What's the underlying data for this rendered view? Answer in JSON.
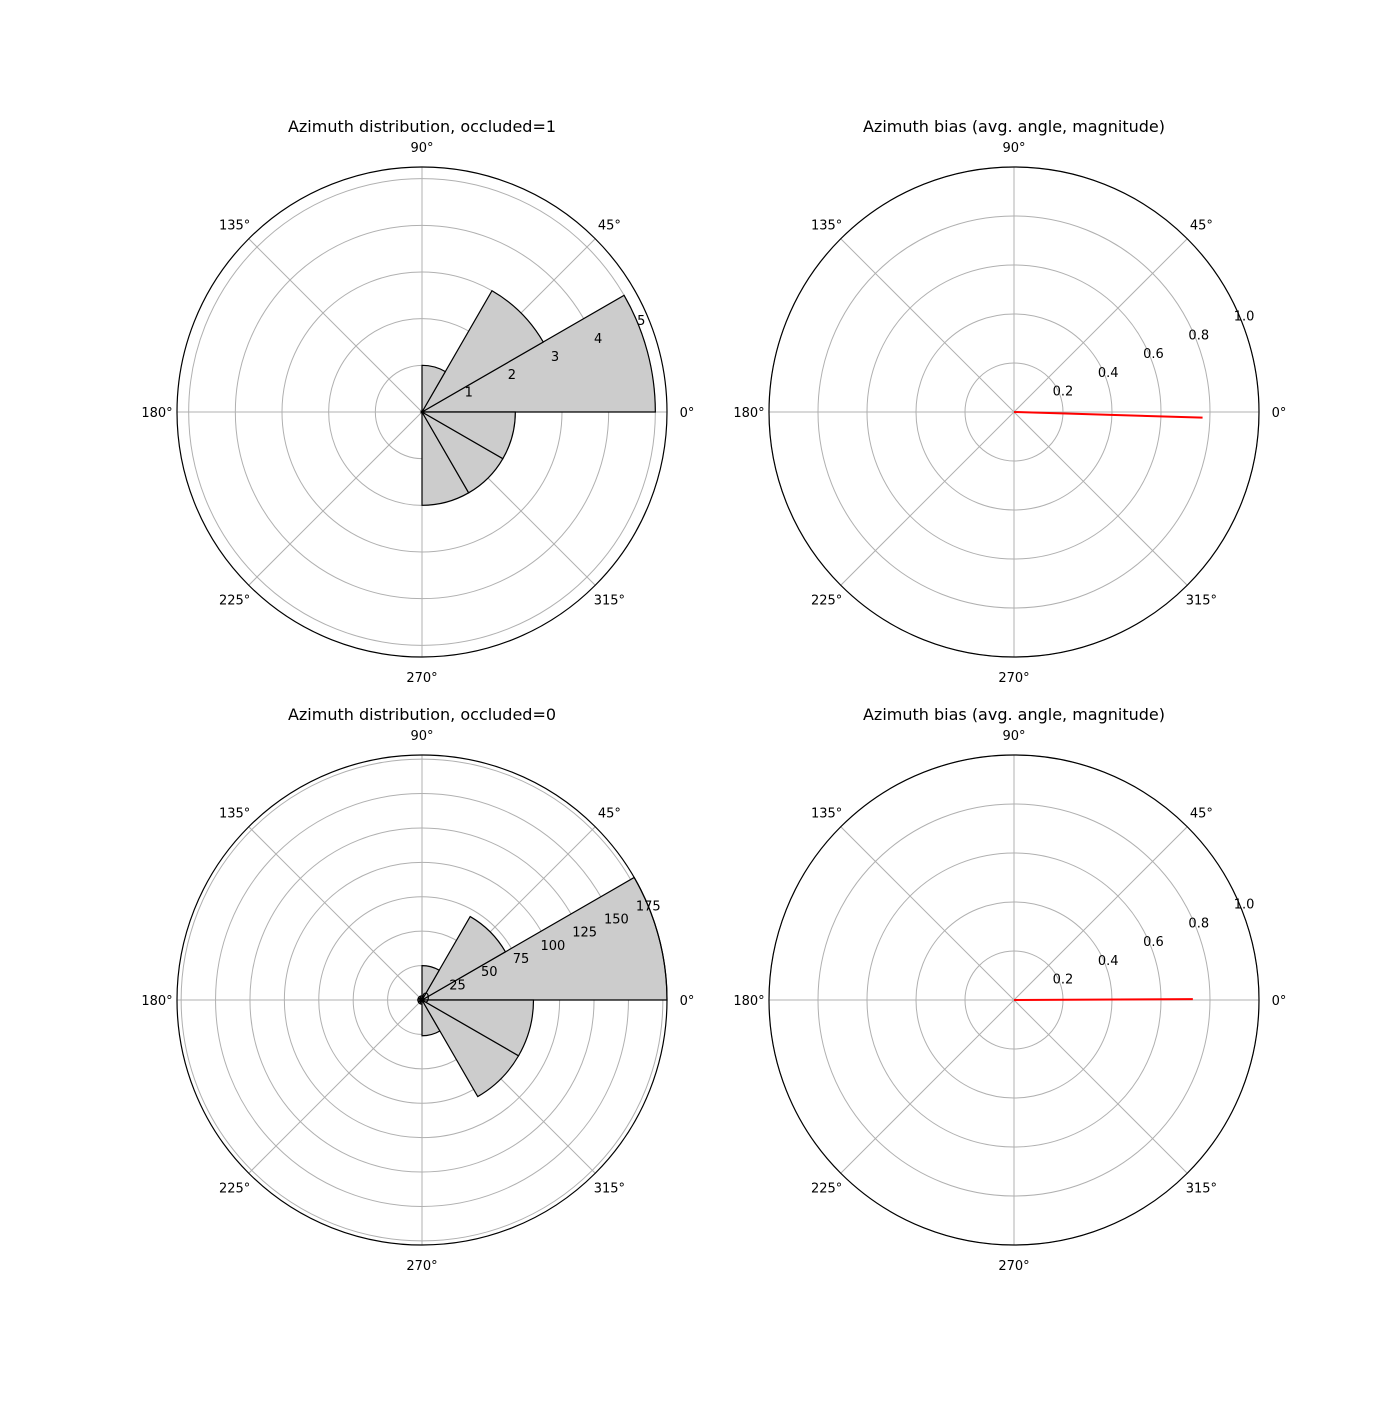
{
  "colors": {
    "grid": "#b0b0b0",
    "bar_fill": "#cccccc",
    "bar_edge": "#000000",
    "bias_line": "#ff0000",
    "frame": "#000000"
  },
  "chart_data": [
    {
      "type": "polar-bar",
      "title": "Azimuth distribution, occluded=1",
      "angle_tick_labels": [
        "0°",
        "45°",
        "90°",
        "135°",
        "180°",
        "225°",
        "270°",
        "315°"
      ],
      "radial_tick_labels": [
        "1",
        "2",
        "3",
        "4",
        "5"
      ],
      "radial_ticks": [
        1,
        2,
        3,
        4,
        5
      ],
      "rlim": [
        0,
        5.25
      ],
      "grid": true,
      "bars": [
        {
          "theta_start_deg": 0,
          "theta_end_deg": 30,
          "value": 5
        },
        {
          "theta_start_deg": 30,
          "theta_end_deg": 60,
          "value": 3
        },
        {
          "theta_start_deg": 60,
          "theta_end_deg": 90,
          "value": 1
        },
        {
          "theta_start_deg": 270,
          "theta_end_deg": 300,
          "value": 2
        },
        {
          "theta_start_deg": 300,
          "theta_end_deg": 330,
          "value": 2
        },
        {
          "theta_start_deg": 330,
          "theta_end_deg": 360,
          "value": 2
        }
      ]
    },
    {
      "type": "polar-line",
      "title": "Azimuth bias (avg. angle, magnitude)",
      "angle_tick_labels": [
        "0°",
        "45°",
        "90°",
        "135°",
        "180°",
        "225°",
        "270°",
        "315°"
      ],
      "radial_tick_labels": [
        "0.2",
        "0.4",
        "0.6",
        "0.8",
        "1.0"
      ],
      "radial_ticks": [
        0.2,
        0.4,
        0.6,
        0.8,
        1.0
      ],
      "rlim": [
        0,
        1.0
      ],
      "grid": true,
      "bias": {
        "angle_deg": -1.7,
        "magnitude": 0.77
      }
    },
    {
      "type": "polar-bar",
      "title": "Azimuth distribution, occluded=0",
      "angle_tick_labels": [
        "0°",
        "45°",
        "90°",
        "135°",
        "180°",
        "225°",
        "270°",
        "315°"
      ],
      "radial_tick_labels": [
        "0",
        "25",
        "50",
        "75",
        "100",
        "125",
        "150",
        "175"
      ],
      "radial_ticks": [
        0,
        25,
        50,
        75,
        100,
        125,
        150,
        175
      ],
      "rlim": [
        0,
        178
      ],
      "grid": true,
      "bars": [
        {
          "theta_start_deg": 0,
          "theta_end_deg": 30,
          "value": 178
        },
        {
          "theta_start_deg": 30,
          "theta_end_deg": 60,
          "value": 70
        },
        {
          "theta_start_deg": 60,
          "theta_end_deg": 90,
          "value": 25
        },
        {
          "theta_start_deg": 90,
          "theta_end_deg": 120,
          "value": 3
        },
        {
          "theta_start_deg": 120,
          "theta_end_deg": 150,
          "value": 3
        },
        {
          "theta_start_deg": 150,
          "theta_end_deg": 180,
          "value": 3
        },
        {
          "theta_start_deg": 180,
          "theta_end_deg": 210,
          "value": 3
        },
        {
          "theta_start_deg": 210,
          "theta_end_deg": 240,
          "value": 3
        },
        {
          "theta_start_deg": 240,
          "theta_end_deg": 270,
          "value": 3
        },
        {
          "theta_start_deg": 270,
          "theta_end_deg": 300,
          "value": 26
        },
        {
          "theta_start_deg": 300,
          "theta_end_deg": 330,
          "value": 81
        },
        {
          "theta_start_deg": 330,
          "theta_end_deg": 360,
          "value": 81
        }
      ]
    },
    {
      "type": "polar-line",
      "title": "Azimuth bias (avg. angle, magnitude)",
      "angle_tick_labels": [
        "0°",
        "45°",
        "90°",
        "135°",
        "180°",
        "225°",
        "270°",
        "315°"
      ],
      "radial_tick_labels": [
        "0.2",
        "0.4",
        "0.6",
        "0.8",
        "1.0"
      ],
      "radial_ticks": [
        0.2,
        0.4,
        0.6,
        0.8,
        1.0
      ],
      "rlim": [
        0,
        1.0
      ],
      "grid": true,
      "bias": {
        "angle_deg": 0.3,
        "magnitude": 0.73
      }
    }
  ]
}
